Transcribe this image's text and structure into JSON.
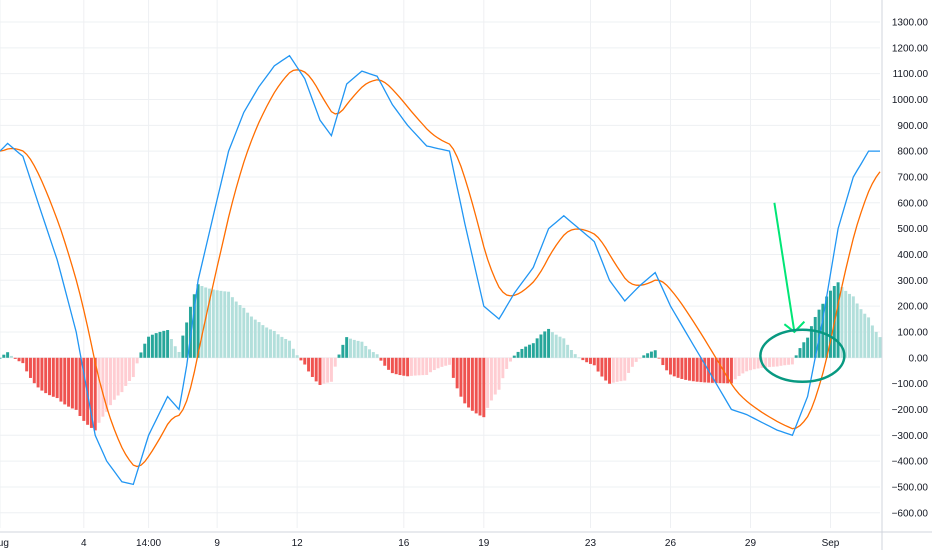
{
  "colors": {
    "macd_line": "#2196f3",
    "signal_line": "#ff6d00",
    "hist_pos_strong": "#26a69a",
    "hist_pos_weak": "#b2dfdb",
    "hist_neg_strong": "#ef5350",
    "hist_neg_weak": "#ffcdd2",
    "annotation_arrow": "#00e676",
    "annotation_circle": "#089981"
  },
  "chart_data": {
    "type": "line",
    "indicator": "MACD",
    "ylim": [
      -650,
      1350
    ],
    "y_ticks": [
      "1300.00",
      "1200.00",
      "1100.00",
      "1000.00",
      "900.00",
      "800.00",
      "700.00",
      "600.00",
      "500.00",
      "400.00",
      "300.00",
      "200.00",
      "100.00",
      "0.00",
      "−100.00",
      "−200.00",
      "−300.00",
      "−400.00",
      "−500.00",
      "−600.00"
    ],
    "y_tick_values": [
      1300,
      1200,
      1100,
      1000,
      900,
      800,
      700,
      600,
      500,
      400,
      300,
      200,
      100,
      0,
      -100,
      -200,
      -300,
      -400,
      -500,
      -600
    ],
    "x_tick_labels": [
      "Aug",
      "4",
      "14:00",
      "9",
      "12",
      "16",
      "19",
      "23",
      "26",
      "29",
      "Sep"
    ],
    "x_tick_index": [
      0,
      22,
      39,
      57,
      78,
      106,
      127,
      155,
      176,
      197,
      218
    ],
    "x_count": 232,
    "series": [
      {
        "key": "macd",
        "points": [
          [
            0,
            800
          ],
          [
            2,
            830
          ],
          [
            6,
            780
          ],
          [
            10,
            600
          ],
          [
            15,
            380
          ],
          [
            20,
            100
          ],
          [
            25,
            -300
          ],
          [
            28,
            -400
          ],
          [
            32,
            -480
          ],
          [
            35,
            -490
          ],
          [
            39,
            -300
          ],
          [
            44,
            -150
          ],
          [
            47,
            -200
          ],
          [
            49,
            -30
          ],
          [
            52,
            300
          ],
          [
            56,
            550
          ],
          [
            60,
            800
          ],
          [
            64,
            950
          ],
          [
            68,
            1050
          ],
          [
            72,
            1130
          ],
          [
            76,
            1170
          ],
          [
            80,
            1080
          ],
          [
            84,
            920
          ],
          [
            87,
            860
          ],
          [
            91,
            1060
          ],
          [
            95,
            1110
          ],
          [
            99,
            1090
          ],
          [
            103,
            980
          ],
          [
            107,
            900
          ],
          [
            112,
            820
          ],
          [
            118,
            800
          ],
          [
            122,
            520
          ],
          [
            127,
            200
          ],
          [
            131,
            150
          ],
          [
            135,
            250
          ],
          [
            140,
            350
          ],
          [
            144,
            500
          ],
          [
            148,
            550
          ],
          [
            152,
            500
          ],
          [
            156,
            450
          ],
          [
            160,
            300
          ],
          [
            164,
            220
          ],
          [
            168,
            280
          ],
          [
            172,
            330
          ],
          [
            176,
            200
          ],
          [
            180,
            100
          ],
          [
            184,
            0
          ],
          [
            188,
            -100
          ],
          [
            192,
            -200
          ],
          [
            196,
            -220
          ],
          [
            200,
            -250
          ],
          [
            204,
            -280
          ],
          [
            208,
            -300
          ],
          [
            212,
            -150
          ],
          [
            216,
            150
          ],
          [
            220,
            500
          ],
          [
            224,
            700
          ],
          [
            228,
            800
          ],
          [
            232,
            800
          ]
        ]
      },
      {
        "key": "signal",
        "points": []
      }
    ],
    "histogram": [],
    "annotations": [
      {
        "type": "arrow",
        "description": ""
      },
      {
        "type": "circle",
        "description": ""
      }
    ]
  }
}
